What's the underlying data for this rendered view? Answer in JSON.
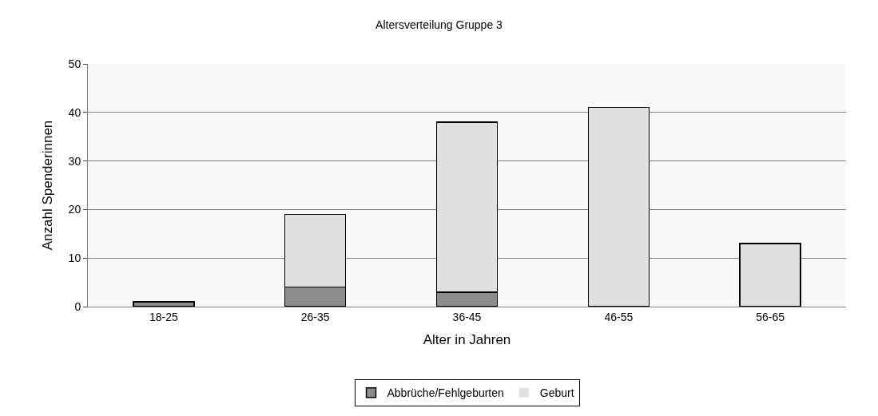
{
  "chart_data": {
    "type": "bar",
    "title": "Altersverteilung Gruppe 3",
    "xlabel": "Alter in Jahren",
    "ylabel": "Anzahl Spenderinnen",
    "categories": [
      "18-25",
      "26-35",
      "36-45",
      "46-55",
      "56-65"
    ],
    "stacked": true,
    "series": [
      {
        "name": "Abbrüche/Fehlgeburten",
        "color": "#8c8c8c",
        "values": [
          1,
          4,
          3,
          0,
          0
        ]
      },
      {
        "name": "Geburt",
        "color": "#e0e0e0",
        "values": [
          0,
          15,
          35,
          41,
          13
        ]
      }
    ],
    "ylim": [
      0,
      50
    ],
    "yticks": [
      0,
      10,
      20,
      30,
      40,
      50
    ],
    "grid": "y",
    "legend": "bottom"
  }
}
